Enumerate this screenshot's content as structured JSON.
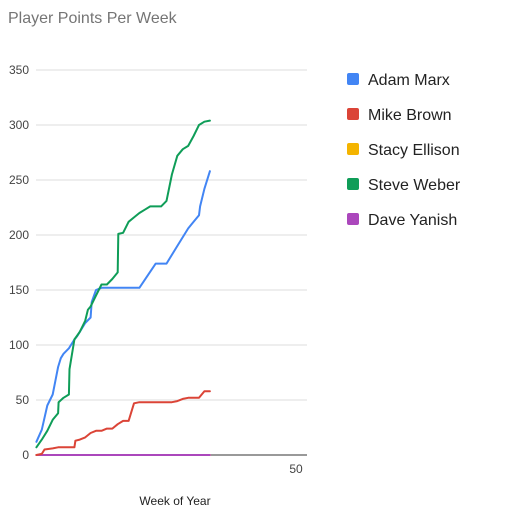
{
  "chart_data": {
    "type": "line",
    "title": "Player Points Per Week",
    "xlabel": "Week of Year",
    "ylabel": "",
    "xlim": [
      0,
      50
    ],
    "ylim": [
      0,
      350
    ],
    "y_ticks": [
      "0",
      "50",
      "100",
      "150",
      "200",
      "250",
      "300",
      "350"
    ],
    "x_ticks": [
      {
        "value": 50,
        "label": "50"
      }
    ],
    "grid": true,
    "legend_position": "right",
    "series": [
      {
        "name": "Adam Marx",
        "color": "#4285f4",
        "x": [
          1,
          2,
          3,
          4,
          5,
          5.5,
          6,
          7,
          8,
          8.5,
          9,
          10,
          11,
          11.2,
          12,
          13,
          14,
          15,
          20,
          23,
          24,
          25,
          27,
          29,
          30,
          31,
          31.2,
          32,
          33
        ],
        "y": [
          12,
          23,
          45,
          55,
          80,
          88,
          92,
          97,
          105,
          108,
          112,
          120,
          125,
          139,
          150,
          152,
          152,
          152,
          152,
          174,
          174,
          174,
          190,
          206,
          212,
          218,
          226,
          242,
          258
        ]
      },
      {
        "name": "Mike Brown",
        "color": "#db4437",
        "x": [
          1,
          2,
          2.5,
          4,
          5,
          6,
          7,
          8,
          8.2,
          9,
          10,
          11,
          12,
          13,
          14,
          15,
          16,
          17,
          18,
          19,
          20,
          21,
          22,
          23,
          24,
          25,
          26,
          27,
          28,
          29,
          30,
          31,
          32,
          33
        ],
        "y": [
          0,
          1,
          5,
          6,
          7,
          7,
          7,
          7,
          13,
          14,
          16,
          20,
          22,
          22,
          24,
          24,
          28,
          31,
          31,
          47,
          48,
          48,
          48,
          48,
          48,
          48,
          48,
          49,
          51,
          52,
          52,
          52,
          58,
          58
        ]
      },
      {
        "name": "Stacy Ellison",
        "color": "#f4b400",
        "x": [
          1,
          33
        ],
        "y": [
          0,
          0
        ]
      },
      {
        "name": "Steve Weber",
        "color": "#0f9d58",
        "x": [
          1,
          2,
          3,
          4,
          5,
          5.1,
          6,
          7,
          7.1,
          8,
          9,
          10,
          10.5,
          11,
          12,
          13,
          14,
          15,
          16,
          16.1,
          17,
          18,
          19,
          20,
          21,
          22,
          23,
          24,
          25,
          26,
          27,
          28,
          29,
          30,
          31,
          32,
          33
        ],
        "y": [
          7,
          14,
          22,
          32,
          38,
          48,
          52,
          55,
          78,
          105,
          112,
          122,
          132,
          135,
          145,
          155,
          155,
          160,
          166,
          201,
          202,
          212,
          216,
          220,
          223,
          226,
          226,
          226,
          231,
          255,
          272,
          278,
          281,
          290,
          300,
          303,
          304
        ]
      },
      {
        "name": "Dave Yanish",
        "color": "#ab47bc",
        "x": [
          1,
          33
        ],
        "y": [
          0,
          0
        ]
      }
    ]
  }
}
